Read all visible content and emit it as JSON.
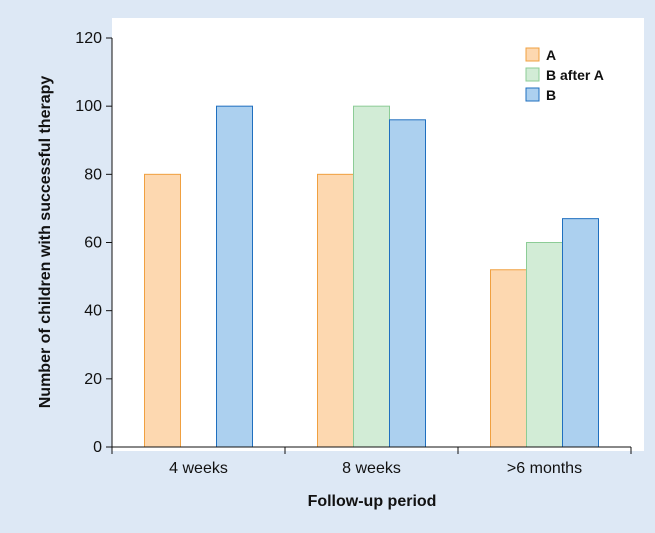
{
  "chart_data": {
    "type": "bar",
    "title": "",
    "xlabel": "Follow-up period",
    "ylabel": "Number of children with successful therapy",
    "categories": [
      "4 weeks",
      "8 weeks",
      ">6 months"
    ],
    "ylim": [
      0,
      120
    ],
    "yticks": [
      "0",
      "20",
      "40",
      "60",
      "80",
      "100",
      "120"
    ],
    "legend_position": "top-right",
    "grid": false,
    "series": [
      {
        "name": "A",
        "values": [
          80,
          80,
          52
        ],
        "fill": "#fdd8b0",
        "stroke": "#f0a040"
      },
      {
        "name": "B after A",
        "values": [
          null,
          100,
          60
        ],
        "fill": "#d2ecd6",
        "stroke": "#8ccc96"
      },
      {
        "name": "B",
        "values": [
          100,
          96,
          67
        ],
        "fill": "#acd0ef",
        "stroke": "#1f6fbf"
      }
    ]
  }
}
